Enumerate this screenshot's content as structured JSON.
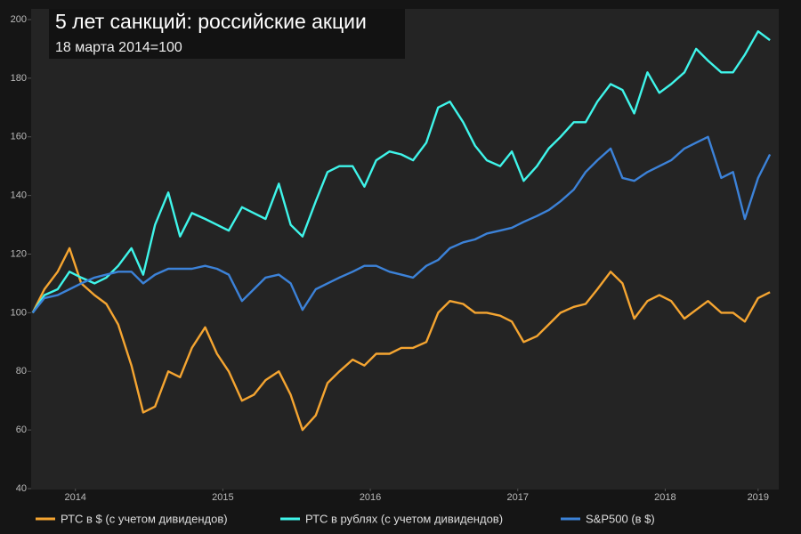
{
  "chart_data": {
    "type": "line",
    "title": "5 лет санкций: российские акции",
    "subtitle": "18 марта 2014=100",
    "x": [
      2014.21,
      2014.29,
      2014.38,
      2014.46,
      2014.54,
      2014.63,
      2014.71,
      2014.79,
      2014.88,
      2014.96,
      2015.04,
      2015.13,
      2015.21,
      2015.29,
      2015.38,
      2015.46,
      2015.54,
      2015.63,
      2015.71,
      2015.79,
      2015.88,
      2015.96,
      2016.04,
      2016.13,
      2016.21,
      2016.29,
      2016.38,
      2016.46,
      2016.54,
      2016.63,
      2016.71,
      2016.79,
      2016.88,
      2016.96,
      2017.04,
      2017.13,
      2017.21,
      2017.29,
      2017.38,
      2017.46,
      2017.54,
      2017.63,
      2017.71,
      2017.79,
      2017.88,
      2017.96,
      2018.04,
      2018.13,
      2018.21,
      2018.29,
      2018.38,
      2018.46,
      2018.54,
      2018.63,
      2018.71,
      2018.79,
      2018.88,
      2018.96,
      2019.04,
      2019.13,
      2019.21
    ],
    "series": [
      {
        "name": "РТС в $ (с учетом дивидендов)",
        "color": "#f5a531",
        "values": [
          100,
          108,
          114,
          122,
          110,
          106,
          103,
          96,
          82,
          66,
          68,
          80,
          78,
          88,
          95,
          86,
          80,
          70,
          72,
          77,
          80,
          72,
          60,
          65,
          76,
          80,
          84,
          82,
          86,
          86,
          88,
          88,
          90,
          100,
          104,
          103,
          100,
          100,
          99,
          97,
          90,
          92,
          96,
          100,
          102,
          103,
          108,
          114,
          110,
          98,
          104,
          106,
          104,
          98,
          101,
          104,
          100,
          100,
          97,
          105,
          107
        ]
      },
      {
        "name": "РТС в рублях (с учетом дивидендов)",
        "color": "#3ff5ea",
        "values": [
          100,
          106,
          108,
          114,
          112,
          110,
          112,
          116,
          122,
          113,
          130,
          141,
          126,
          134,
          132,
          130,
          128,
          136,
          134,
          132,
          144,
          130,
          126,
          138,
          148,
          150,
          150,
          143,
          152,
          155,
          154,
          152,
          158,
          170,
          172,
          165,
          157,
          152,
          150,
          155,
          145,
          150,
          156,
          160,
          165,
          165,
          172,
          178,
          176,
          168,
          182,
          175,
          178,
          182,
          190,
          186,
          182,
          182,
          188,
          196,
          193
        ]
      },
      {
        "name": "S&P500 (в $)",
        "color": "#3c82d8",
        "values": [
          100,
          105,
          106,
          108,
          110,
          112,
          113,
          114,
          114,
          110,
          113,
          115,
          115,
          115,
          116,
          115,
          113,
          104,
          108,
          112,
          113,
          110,
          101,
          108,
          110,
          112,
          114,
          116,
          116,
          114,
          113,
          112,
          116,
          118,
          122,
          124,
          125,
          127,
          128,
          129,
          131,
          133,
          135,
          138,
          142,
          148,
          152,
          156,
          146,
          145,
          148,
          150,
          152,
          156,
          158,
          160,
          146,
          148,
          132,
          146,
          154
        ]
      }
    ],
    "xlim": [
      2014.2,
      2019.27
    ],
    "xticks": [
      {
        "value": 2014.5,
        "label": "2014"
      },
      {
        "value": 2015.5,
        "label": "2015"
      },
      {
        "value": 2016.5,
        "label": "2016"
      },
      {
        "value": 2017.5,
        "label": "2017"
      },
      {
        "value": 2018.5,
        "label": "2018"
      },
      {
        "value": 2019.13,
        "label": "2019"
      }
    ],
    "ylim": [
      40,
      200
    ],
    "yticks": [
      40,
      60,
      80,
      100,
      120,
      140,
      160,
      180,
      200
    ],
    "legend": "bottom"
  }
}
